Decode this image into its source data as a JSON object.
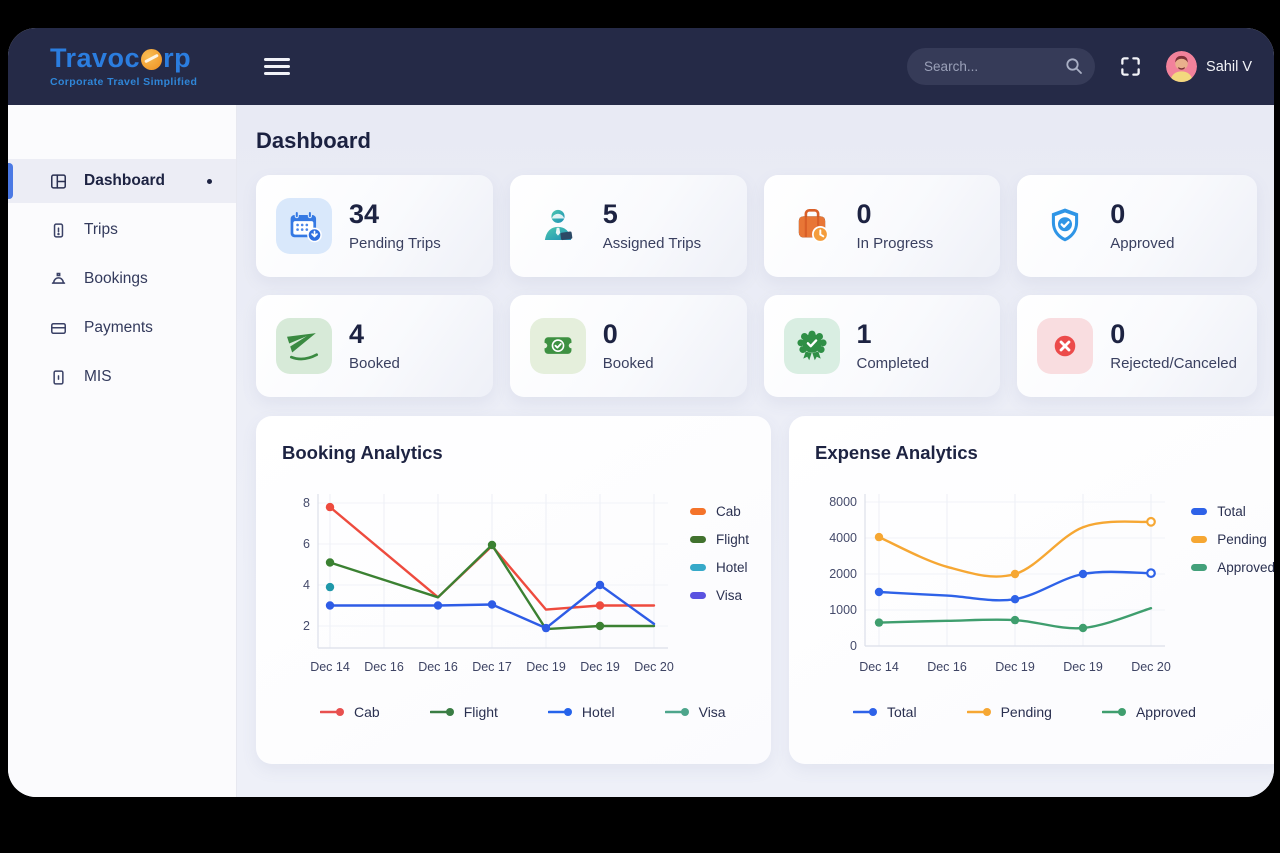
{
  "header": {
    "logo_title_left": "Trav",
    "logo_title_mid": "c",
    "logo_title_right": "rp",
    "logo_tagline": "Corporate Travel Simplified",
    "search_placeholder": "Search...",
    "user_name": "Sahil V"
  },
  "sidebar": {
    "items": [
      {
        "label": "Dashboard",
        "icon": "dashboard-icon",
        "active": true
      },
      {
        "label": "Trips",
        "icon": "trips-icon",
        "active": false
      },
      {
        "label": "Bookings",
        "icon": "bookings-icon",
        "active": false
      },
      {
        "label": "Payments",
        "icon": "payments-icon",
        "active": false
      },
      {
        "label": "MIS",
        "icon": "mis-icon",
        "active": false
      }
    ]
  },
  "page": {
    "title": "Dashboard"
  },
  "stat_cards": [
    {
      "icon": "calendar-download-icon",
      "value": "34",
      "label": "Pending Trips"
    },
    {
      "icon": "travel-agent-icon",
      "value": "5",
      "label": "Assigned Trips"
    },
    {
      "icon": "luggage-clock-icon",
      "value": "0",
      "label": "In Progress"
    },
    {
      "icon": "shield-check-icon",
      "value": "0",
      "label": "Approved"
    },
    {
      "icon": "plane-icon",
      "value": "4",
      "label": "Booked"
    },
    {
      "icon": "ticket-check-icon",
      "value": "0",
      "label": "Booked"
    },
    {
      "icon": "medal-check-icon",
      "value": "1",
      "label": "Completed"
    },
    {
      "icon": "cancel-icon",
      "value": "0",
      "label": "Rejected/Canceled"
    }
  ],
  "colors": {
    "header_bg": "#252a47",
    "logo_blue": "#2b7ddf",
    "logo_orange": "#ef8f1f",
    "accent_blue": "#4b79e4",
    "text_dark": "#1d2342"
  },
  "chart_data": [
    {
      "type": "line",
      "title": "Booking Analytics",
      "categories": [
        "Dec 14",
        "Dec 16",
        "Dec 16",
        "Dec 17",
        "Dec 19",
        "Dec 19",
        "Dec 20"
      ],
      "yticks": [
        2,
        4,
        6,
        8
      ],
      "ylim": [
        1,
        8.5
      ],
      "grid": true,
      "smooth": false,
      "legend_position": "right-and-bottom",
      "series": [
        {
          "name": "Cab",
          "color": "#ee4b3e",
          "values": [
            7.8,
            5.6,
            3.4,
            5.9,
            2.8,
            3.0,
            3.0
          ],
          "markers": [
            0,
            5
          ],
          "open_end": false
        },
        {
          "name": "Flight",
          "color": "#3b8132",
          "values": [
            5.1,
            4.25,
            3.4,
            5.95,
            1.85,
            2.0,
            2.0
          ],
          "markers": [
            0,
            3,
            5
          ],
          "open_end": false
        },
        {
          "name": "Hotel",
          "color": "#1f98a9",
          "values": [
            3.9,
            null,
            null,
            null,
            null,
            null,
            null
          ],
          "markers": [
            0
          ],
          "open_end": false
        },
        {
          "name": "Visa",
          "color": "#2e5ce6",
          "values": [
            3.0,
            3.0,
            3.0,
            3.05,
            1.9,
            4.0,
            2.1
          ],
          "markers": [
            0,
            2,
            3,
            4,
            5
          ],
          "open_end": false
        }
      ],
      "side_legend": [
        {
          "label": "Cab",
          "color": "#f4732a"
        },
        {
          "label": "Flight",
          "color": "#41722e"
        },
        {
          "label": "Hotel",
          "color": "#36a9c9"
        },
        {
          "label": "Visa",
          "color": "#5a52e0"
        }
      ],
      "bottom_legend": [
        {
          "label": "Cab",
          "color": "#e8504f"
        },
        {
          "label": "Flight",
          "color": "#3a7d44"
        },
        {
          "label": "Hotel",
          "color": "#2563eb"
        },
        {
          "label": "Visa",
          "color": "#4da58b"
        }
      ]
    },
    {
      "type": "line",
      "title": "Expense Analytics",
      "categories": [
        "Dec 14",
        "Dec 16",
        "Dec 19",
        "Dec 19",
        "Dec 20"
      ],
      "yticks": [
        0,
        1000,
        2000,
        4000,
        8000
      ],
      "ylim": [
        0,
        8000
      ],
      "grid": true,
      "smooth": true,
      "legend_position": "right-and-bottom",
      "series": [
        {
          "name": "Total",
          "color": "#2e62e8",
          "values": [
            1500,
            1400,
            1300,
            2000,
            2050
          ],
          "markers": [
            0,
            2,
            3
          ],
          "open_end": true
        },
        {
          "name": "Pending",
          "color": "#f6a733",
          "values": [
            4100,
            2400,
            2000,
            5200,
            5800
          ],
          "markers": [
            0,
            2
          ],
          "open_end": true
        },
        {
          "name": "Approved",
          "color": "#3f9e6e",
          "values": [
            650,
            700,
            720,
            500,
            1050
          ],
          "markers": [
            0,
            2,
            3
          ],
          "open_end": false
        }
      ],
      "side_legend": [
        {
          "label": "Total",
          "color": "#2e62e8"
        },
        {
          "label": "Pending",
          "color": "#f6a733"
        },
        {
          "label": "Approved",
          "color": "#43a07a"
        }
      ],
      "bottom_legend": [
        {
          "label": "Total",
          "color": "#2e62e8"
        },
        {
          "label": "Pending",
          "color": "#f6a733"
        },
        {
          "label": "Approved",
          "color": "#3f9e6e"
        }
      ]
    }
  ]
}
